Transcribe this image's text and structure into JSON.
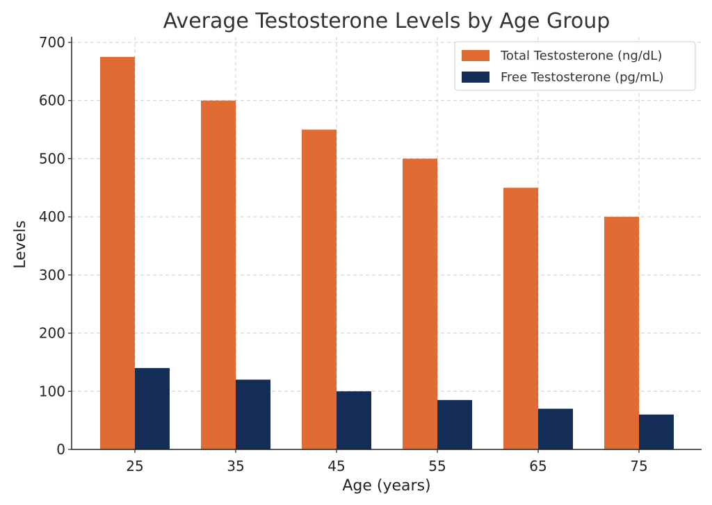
{
  "chart_data": {
    "type": "bar",
    "title": "Average Testosterone Levels by Age Group",
    "xlabel": "Age (years)",
    "ylabel": "Levels",
    "categories": [
      "25",
      "35",
      "45",
      "55",
      "65",
      "75"
    ],
    "series": [
      {
        "name": "Total Testosterone (ng/dL)",
        "color": "#e06b33",
        "values": [
          675,
          600,
          550,
          500,
          450,
          400
        ]
      },
      {
        "name": "Free Testosterone (pg/mL)",
        "color": "#142d56",
        "values": [
          140,
          120,
          100,
          85,
          70,
          60
        ]
      }
    ],
    "ylim": [
      0,
      700
    ],
    "yticks": [
      0,
      100,
      200,
      300,
      400,
      500,
      600,
      700
    ],
    "grid": true,
    "legend_position": "top-right"
  }
}
